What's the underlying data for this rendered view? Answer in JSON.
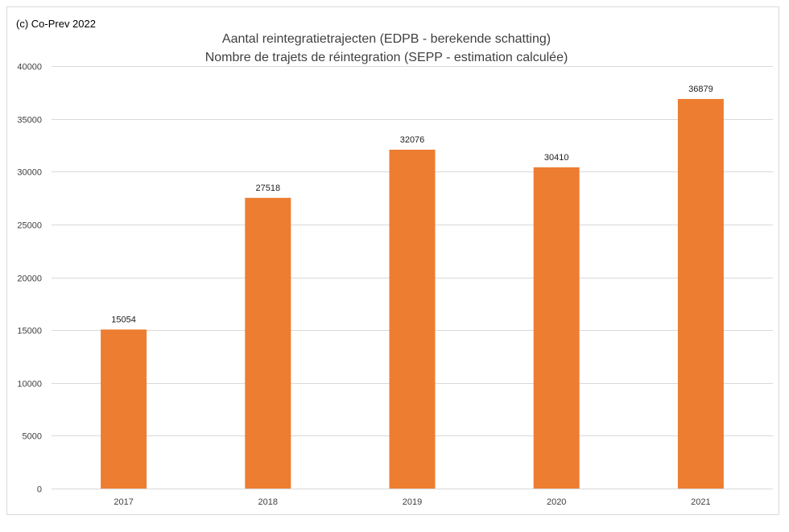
{
  "header": {
    "copyright": "(c) Co-Prev 2022"
  },
  "chart_data": {
    "type": "bar",
    "title": "Aantal reintegratietrajecten (EDPB - berekende schatting)",
    "subtitle": "Nombre de trajets de réintegration (SEPP - estimation calculée)",
    "categories": [
      "2017",
      "2018",
      "2019",
      "2020",
      "2021"
    ],
    "values": [
      15054,
      27518,
      32076,
      30410,
      36879
    ],
    "data_labels": [
      "15054",
      "27518",
      "32076",
      "30410",
      "36879"
    ],
    "ylim": [
      0,
      40000
    ],
    "yticks": [
      0,
      5000,
      10000,
      15000,
      20000,
      25000,
      30000,
      35000,
      40000
    ],
    "grid": true,
    "legend": "none",
    "bar_color": "#ED7D31",
    "grid_color": "#D9D9D9"
  }
}
